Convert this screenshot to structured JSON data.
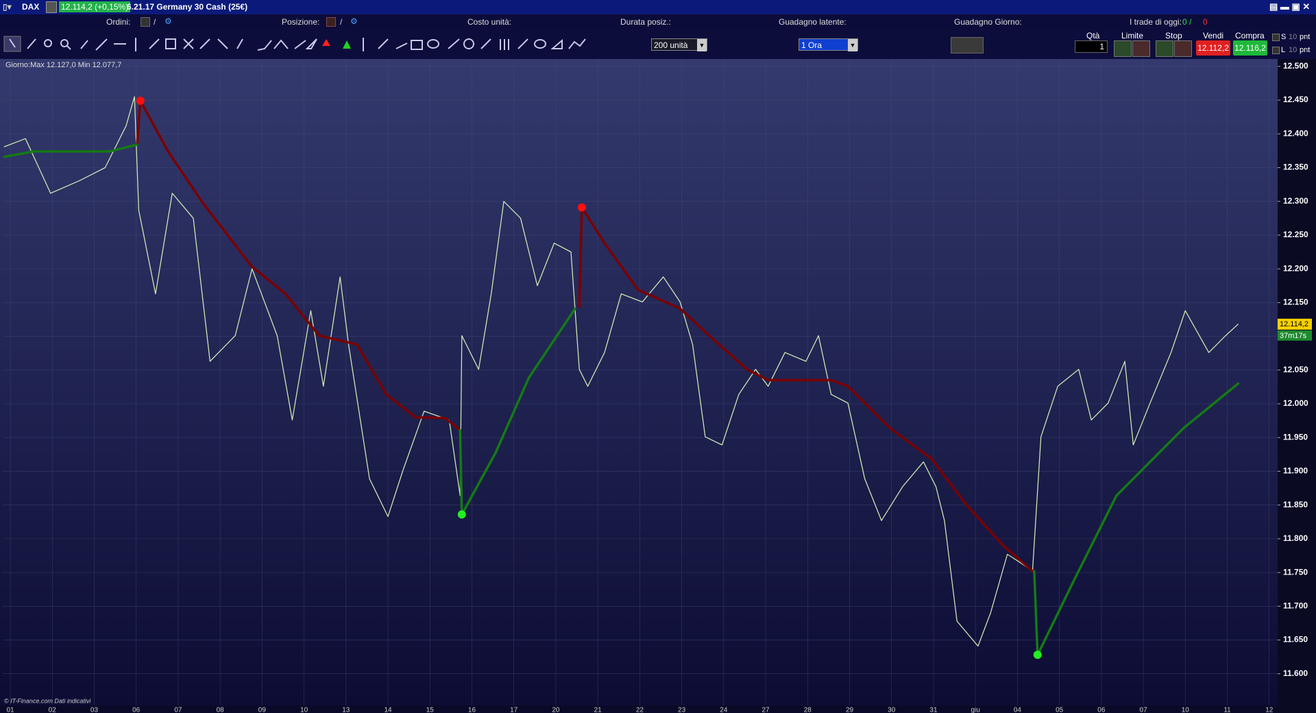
{
  "window": {
    "title": "DAX",
    "price": "12.114,2 (+0,15%)",
    "instrument": "6.21.17 Germany 30 Cash (25€)"
  },
  "info_bar": {
    "orders": "Ordini:",
    "orders_sep": "/",
    "position": "Posizione:",
    "position_sep": "/",
    "unit_cost": "Costo unità:",
    "duration": "Durata posiz.:",
    "latent_gain": "Guadagno latente:",
    "day_gain": "Guadagno Giorno:",
    "trades_today": "I trade di oggi:",
    "trades_won": "0 /",
    "trades_lost": "0"
  },
  "toolbar": {
    "size_select": "200 unità",
    "timeframe_select": "1 Ora",
    "qty_label": "Qtà",
    "qty": "1",
    "limit": "Limite",
    "stop": "Stop",
    "sell": "Vendi",
    "buy": "Compra",
    "sell_price": "12.112,2",
    "buy_price": "12.116,2",
    "s_label": "S",
    "s_value": "10",
    "s_unit": "pnt",
    "l_label": "L",
    "l_value": "10",
    "l_unit": "pnt"
  },
  "chart_data": {
    "type": "line",
    "day_range": "Giorno:Max 12.127,0 Min 12.077,7",
    "last_price": "12.114,2",
    "countdown": "37m17s",
    "footer": "© IT-Finance.com Dati indicativi",
    "categories": [
      "01",
      "02",
      "03",
      "06",
      "07",
      "08",
      "09",
      "10",
      "13",
      "14",
      "15",
      "16",
      "17",
      "20",
      "21",
      "22",
      "23",
      "24",
      "27",
      "28",
      "29",
      "30",
      "31",
      "giu",
      "04",
      "05",
      "06",
      "07",
      "10",
      "11",
      "12"
    ],
    "xlim": [
      -0.18,
      30.2
    ],
    "ylim": [
      11553,
      12511
    ],
    "yticks": [
      {
        "value": 11600,
        "label": "11.600"
      },
      {
        "value": 11650,
        "label": "11.650"
      },
      {
        "value": 11700,
        "label": "11.700"
      },
      {
        "value": 11750,
        "label": "11.750"
      },
      {
        "value": 11800,
        "label": "11.800"
      },
      {
        "value": 11850,
        "label": "11.850"
      },
      {
        "value": 11900,
        "label": "11.900"
      },
      {
        "value": 11950,
        "label": "11.950"
      },
      {
        "value": 12000,
        "label": "12.000"
      },
      {
        "value": 12050,
        "label": "12.050"
      },
      {
        "value": 12100,
        "label": "12.100"
      },
      {
        "value": 12150,
        "label": "12.150"
      },
      {
        "value": 12200,
        "label": "12.200"
      },
      {
        "value": 12250,
        "label": "12.250"
      },
      {
        "value": 12300,
        "label": "12.300"
      },
      {
        "value": 12350,
        "label": "12.350"
      },
      {
        "value": 12400,
        "label": "12.400"
      },
      {
        "value": 12450,
        "label": "12.450"
      },
      {
        "value": 12500,
        "label": "12.500"
      }
    ],
    "grid": true,
    "series": [
      {
        "type": "line",
        "color": "#cfe6b4",
        "width": 1.3,
        "x": [
          -0.14,
          0.36,
          0.96,
          1.66,
          2.26,
          2.76,
          2.96,
          3.06,
          3.46,
          3.86,
          4.36,
          4.76,
          5.36,
          5.76,
          6.36,
          6.72,
          7.16,
          7.46,
          7.86,
          8.06,
          8.56,
          9.0,
          9.36,
          9.86,
          10.46,
          10.72,
          10.76,
          11.16,
          11.46,
          11.76,
          12.16,
          12.56,
          12.96,
          13.36,
          13.56,
          13.76,
          14.16,
          14.56,
          15.06,
          15.56,
          15.96,
          16.26,
          16.56,
          16.96,
          17.36,
          17.76,
          18.06,
          18.46,
          18.96,
          19.26,
          19.56,
          19.96,
          20.36,
          20.76,
          21.26,
          21.76,
          22.06,
          22.26,
          22.56,
          23.06,
          23.36,
          23.76,
          24.06,
          24.36,
          24.56,
          24.96,
          25.46,
          25.76,
          26.16,
          26.56,
          26.76,
          27.16,
          27.66,
          28.0,
          28.56,
          28.96,
          29.26
        ],
        "values": [
          12381,
          12393,
          12312,
          12331,
          12350,
          12412,
          12455,
          12287,
          12163,
          12312,
          12275,
          12063,
          12101,
          12200,
          12101,
          11976,
          12138,
          12026,
          12188,
          12088,
          11889,
          11833,
          11902,
          11989,
          11976,
          11864,
          12101,
          12051,
          12163,
          12300,
          12275,
          12175,
          12238,
          12225,
          12051,
          12026,
          12076,
          12163,
          12151,
          12188,
          12151,
          12088,
          11951,
          11939,
          12014,
          12051,
          12026,
          12076,
          12063,
          12101,
          12014,
          12001,
          11889,
          11827,
          11877,
          11914,
          11877,
          11827,
          11678,
          11641,
          11690,
          11777,
          11765,
          11752,
          11951,
          12026,
          12051,
          11976,
          12001,
          12063,
          11939,
          12001,
          12076,
          12138,
          12076,
          12101,
          12118
        ]
      },
      {
        "type": "line",
        "color": "#7a0000",
        "width": 3.5,
        "x": [
          3.02,
          3.1,
          3.76,
          4.56,
          5.76,
          6.56,
          7.36,
          8.26,
          8.96,
          9.66,
          10.36,
          10.72,
          null,
          13.56,
          13.62,
          14.16,
          14.96,
          15.96,
          16.76,
          17.56,
          18.06,
          19.56,
          19.96,
          20.96,
          21.96,
          22.76,
          23.66,
          24.36
        ],
        "values": [
          12384,
          12449,
          12374,
          12300,
          12203,
          12163,
          12101,
          12088,
          12014,
          11980,
          11979,
          11961,
          null,
          12144,
          12291,
          12238,
          12169,
          12141,
          12095,
          12051,
          12035,
          12035,
          12026,
          11964,
          11918,
          11852,
          11790,
          11752
        ]
      },
      {
        "type": "line",
        "color": "#157a15",
        "width": 3.5,
        "x": [
          -0.14,
          0.56,
          2.36,
          3.02,
          null,
          10.72,
          10.76,
          11.56,
          12.36,
          13.46,
          null,
          24.4,
          24.48,
          25.36,
          26.36,
          27.96,
          29.26
        ],
        "values": [
          12366,
          12374,
          12374,
          12384,
          null,
          11961,
          11836,
          11927,
          12039,
          12141,
          null,
          11752,
          11628,
          11740,
          11864,
          11964,
          12030
        ]
      },
      {
        "type": "scatter",
        "color": "#ff1010",
        "x": [
          3.1,
          13.62
        ],
        "values": [
          12449,
          12291
        ]
      },
      {
        "type": "scatter",
        "color": "#22ee22",
        "x": [
          10.76,
          24.48
        ],
        "values": [
          11836,
          11628
        ]
      }
    ]
  }
}
